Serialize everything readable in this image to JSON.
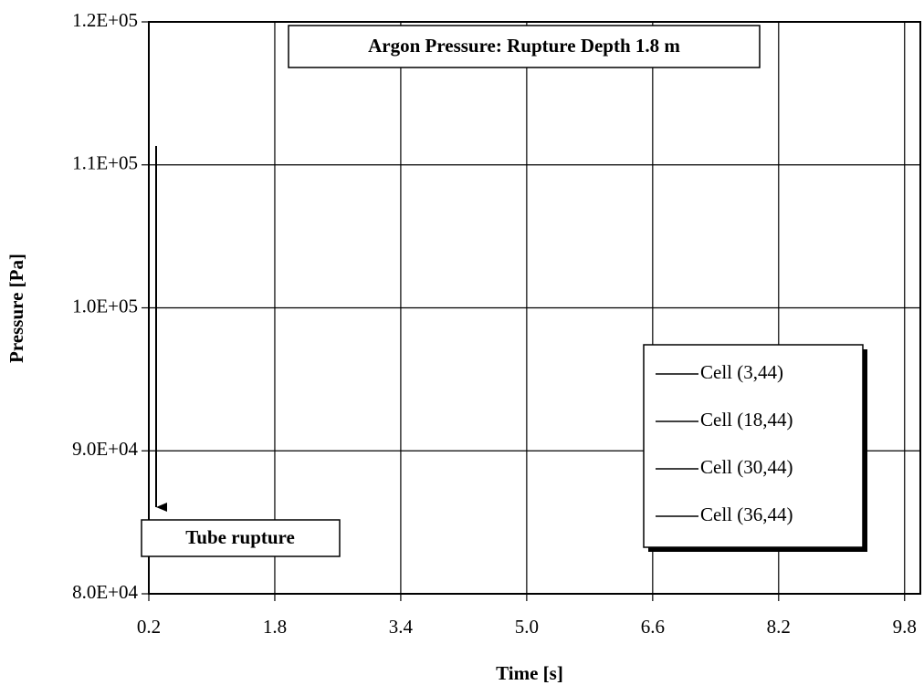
{
  "chart_data": {
    "type": "line",
    "title": "Argon Pressure: Rupture Depth 1.8 m",
    "x_label": "Time [s]",
    "y_label": "Pressure [Pa]",
    "annotation": "Tube rupture",
    "x": [],
    "series": [
      {
        "name": "Cell (3,44)",
        "color": "#000000",
        "values": []
      },
      {
        "name": "Cell (18,44)",
        "color": "#000000",
        "values": []
      },
      {
        "name": "Cell (30,44)",
        "color": "#000000",
        "values": []
      },
      {
        "name": "Cell (36,44)",
        "color": "#000000",
        "values": []
      }
    ],
    "xlim": [
      0.2,
      10.0
    ],
    "xticks": [
      0.2,
      1.8,
      3.4,
      {
        "value": 5,
        "label": "5.0"
      },
      6.6,
      8.2,
      9.8
    ],
    "ylim": [
      80000,
      120000
    ],
    "yticks": [
      {
        "value": 80000,
        "label": "8.0E+04"
      },
      {
        "value": 90000,
        "label": "9.0E+04"
      },
      {
        "value": 100000,
        "label": "1.0E+05"
      },
      {
        "value": 110000,
        "label": "1.1E+05"
      },
      {
        "value": 120000,
        "label": "1.2E+05"
      }
    ],
    "grid": true,
    "legend": "lower-right"
  }
}
